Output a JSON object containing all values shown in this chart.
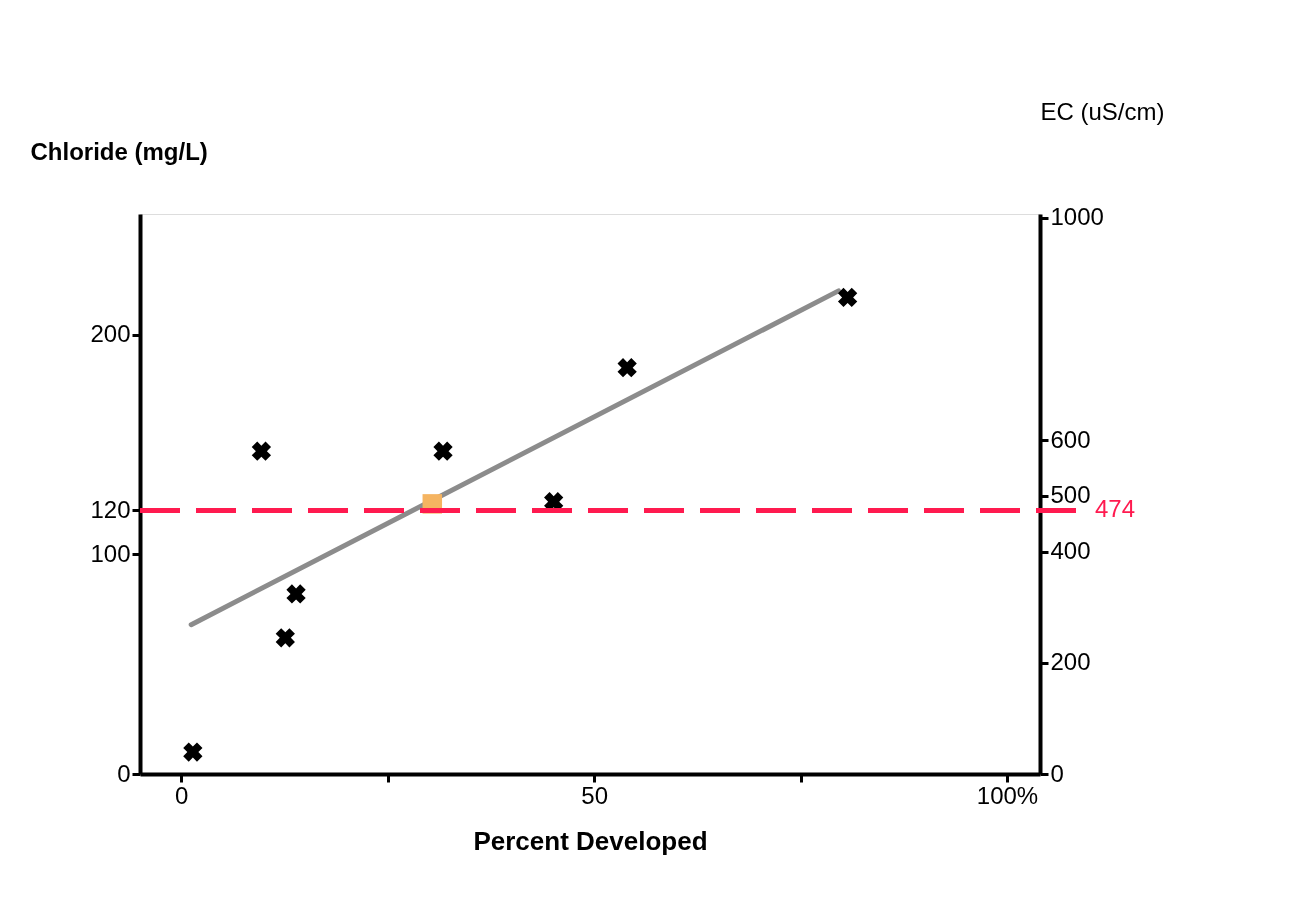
{
  "chart_data": {
    "type": "scatter",
    "xlabel": "Percent Developed",
    "ylabel": "Chloride (mg/L)",
    "y2label": "EC (uS/cm)",
    "xlim": [
      -5,
      104
    ],
    "xticks": [
      0,
      {
        "value": 25,
        "label": null
      },
      50,
      {
        "value": 75,
        "label": null
      },
      {
        "value": 100,
        "label": "100%"
      }
    ],
    "ylim": [
      0,
      255
    ],
    "yticks": [
      0,
      100,
      120,
      200
    ],
    "y2lim": [
      0,
      1007
    ],
    "y2ticks": [
      0,
      200,
      400,
      500,
      600,
      1000
    ],
    "grid": false,
    "legend": false,
    "series": [
      {
        "color": "#000000",
        "marker": "cross",
        "x": [
          1.4,
          9.7,
          13.9,
          12.6,
          31.7,
          45.1,
          54,
          80.7
        ],
        "values": [
          10,
          147,
          82,
          62,
          147,
          124,
          185,
          217
        ]
      },
      {
        "type": "scatter",
        "color": "#f5b461",
        "marker": "square",
        "x": [
          30.4
        ],
        "values": [
          123
        ]
      },
      {
        "type": "line",
        "color": "#8c8c8c",
        "marker": "none",
        "x": [
          1.2,
          79.6
        ],
        "values": [
          68,
          220
        ]
      }
    ],
    "ref_lines": [
      {
        "axis": "y2",
        "value": 474,
        "label": "474",
        "color": "#ff1a4f",
        "line_style": "dashed"
      }
    ]
  }
}
